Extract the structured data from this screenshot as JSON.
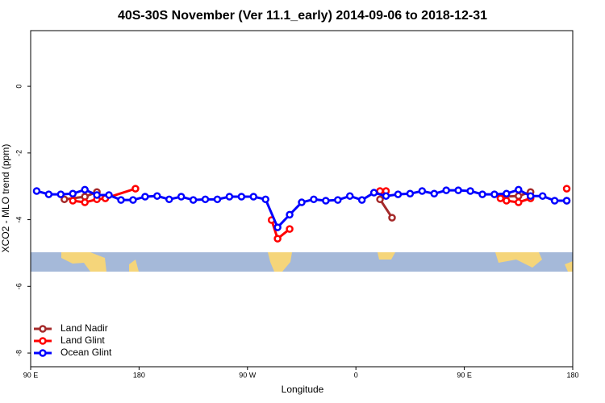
{
  "chart_data": {
    "type": "line",
    "title": "40S-30S November (Ver 11.1_early)   2014-09-06 to 2018-12-31",
    "x_label": "Longitude",
    "y_label": "XCO2 - MLO trend (ppm)",
    "xlim": [
      90,
      540
    ],
    "ylim": [
      -8.41,
      1.67
    ],
    "xticks": [
      {
        "value": 90,
        "label": "90 E"
      },
      {
        "value": 180,
        "label": "180"
      },
      {
        "value": 270,
        "label": "90 W"
      },
      {
        "value": 360,
        "label": "0"
      },
      {
        "value": 450,
        "label": "90 E"
      },
      {
        "value": 540,
        "label": "180"
      }
    ],
    "yticks": [
      0,
      -2,
      -4,
      -6,
      -8
    ],
    "legend": "bottom-left",
    "series": [
      {
        "name": "Land Nadir",
        "color": "#a52a2a",
        "x": [
          118,
          135,
          145,
          null,
          380,
          390,
          null,
          480,
          495,
          505,
          null,
          535
        ],
        "values": [
          -3.39,
          -3.31,
          -3.17,
          null,
          -3.39,
          -3.94,
          null,
          -3.31,
          -3.29,
          -3.17,
          null,
          -3.43
        ]
      },
      {
        "name": "Land Glint",
        "color": "#ff0000",
        "x": [
          125,
          135,
          145,
          152,
          177,
          null,
          290,
          295,
          305,
          null,
          380,
          385,
          null,
          480,
          485,
          495,
          505,
          null,
          535
        ],
        "values": [
          -3.43,
          -3.48,
          -3.39,
          -3.36,
          -3.07,
          null,
          -4.01,
          -4.57,
          -4.28,
          null,
          -3.14,
          -3.14,
          null,
          -3.36,
          -3.43,
          -3.48,
          -3.36,
          null,
          -3.07
        ]
      },
      {
        "name": "Ocean Glint",
        "color": "#0000ff",
        "x": [
          95,
          105,
          115,
          125,
          135,
          145,
          155,
          165,
          175,
          185,
          195,
          205,
          215,
          225,
          235,
          245,
          255,
          265,
          275,
          285,
          295,
          305,
          315,
          325,
          335,
          345,
          355,
          365,
          375,
          385,
          395,
          405,
          415,
          425,
          435,
          445,
          455,
          465,
          475,
          485,
          495,
          505,
          515,
          525,
          535
        ],
        "values": [
          -3.14,
          -3.24,
          -3.24,
          -3.22,
          -3.1,
          -3.26,
          -3.26,
          -3.41,
          -3.41,
          -3.31,
          -3.29,
          -3.39,
          -3.31,
          -3.41,
          -3.39,
          -3.39,
          -3.31,
          -3.31,
          -3.31,
          -3.39,
          -4.23,
          -3.85,
          -3.48,
          -3.39,
          -3.43,
          -3.41,
          -3.29,
          -3.41,
          -3.19,
          -3.29,
          -3.24,
          -3.22,
          -3.14,
          -3.22,
          -3.12,
          -3.12,
          -3.14,
          -3.24,
          -3.24,
          -3.22,
          -3.1,
          -3.29,
          -3.29,
          -3.43,
          -3.43
        ]
      }
    ]
  }
}
